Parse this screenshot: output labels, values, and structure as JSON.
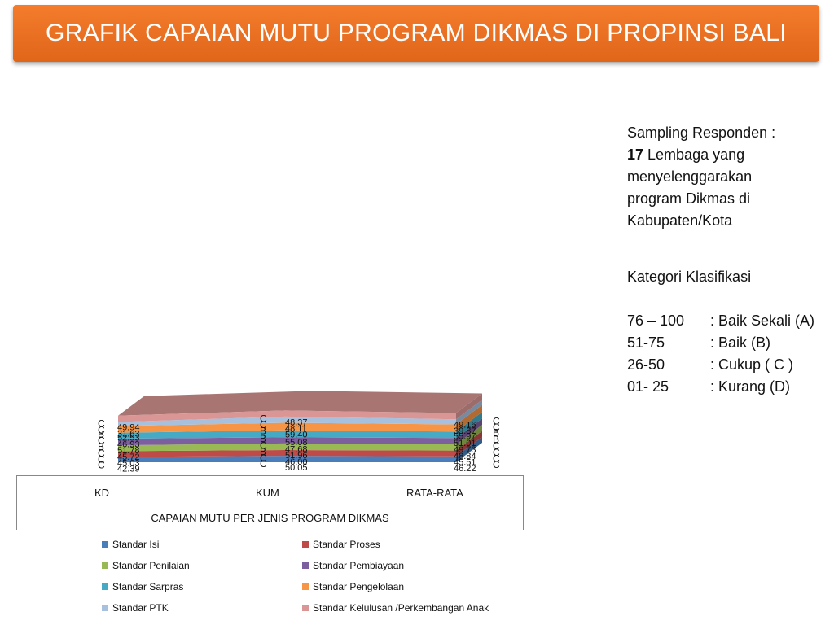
{
  "title": "GRAFIK CAPAIAN MUTU PROGRAM DIKMAS DI PROPINSI BALI",
  "side_panel": {
    "line1": "Sampling Responden   :",
    "count": "17",
    "line2_rest": " Lembaga yang",
    "line3": "menyelenggarakan",
    "line4": "program Dikmas di",
    "line5": "Kabupaten/Kota",
    "kategori_title": "Kategori Klasifikasi",
    "kategori": [
      {
        "range": "76 – 100",
        "label": ": Baik Sekali (A)"
      },
      {
        "range": "51-75",
        "label": ": Baik (B)"
      },
      {
        "range": "26-50",
        "label": ": Cukup ( C )"
      },
      {
        "range": "01- 25",
        "label": ": Kurang (D)"
      }
    ]
  },
  "chart_data": {
    "type": "area",
    "stacked": true,
    "three_d": true,
    "categories": [
      "KD",
      "KUM",
      "RATA-RATA"
    ],
    "xlabel": "CAPAIAN MUTU PER JENIS PROGRAM DIKMAS",
    "legend_position": "bottom",
    "series": [
      {
        "name": "Standar Isi",
        "color": "#4a7ebb",
        "values": [
          42.39,
          50.05,
          46.22
        ],
        "grades": [
          "C",
          "C",
          "C"
        ]
      },
      {
        "name": "Standar Proses",
        "color": "#be4b48",
        "values": [
          45.03,
          46.0,
          45.51
        ],
        "grades": [
          "C",
          "C",
          "C"
        ]
      },
      {
        "name": "Standar Penilaian",
        "color": "#98b954",
        "values": [
          45.72,
          51.96,
          48.84
        ],
        "grades": [
          "C",
          "B",
          "C"
        ]
      },
      {
        "name": "Standar Pembiayaan",
        "color": "#7d5fa0",
        "values": [
          51.78,
          47.68,
          49.73
        ],
        "grades": [
          "B",
          "C",
          "C"
        ]
      },
      {
        "name": "Standar Sarpras",
        "color": "#46aac5",
        "values": [
          46.93,
          55.08,
          51.01
        ],
        "grades": [
          "C",
          "B",
          "B"
        ]
      },
      {
        "name": "Standar Pengelolaan",
        "color": "#f69546",
        "values": [
          52.53,
          59.4,
          55.97
        ],
        "grades": [
          "B",
          "B",
          "B"
        ]
      },
      {
        "name": "Standar PTK",
        "color": "#a7c0de",
        "values": [
          31.63,
          48.11,
          39.87
        ],
        "grades": [
          "C",
          "C",
          "C"
        ]
      },
      {
        "name": "Standar Kelulusan /Perkembangan Anak",
        "color": "#d99694",
        "values": [
          49.94,
          48.37,
          49.16
        ],
        "grades": [
          "C",
          "C",
          "C"
        ]
      }
    ],
    "value_labels": [
      [
        "42.39",
        "50.05",
        "46.22"
      ],
      [
        "45.03",
        "46.00",
        "45.51"
      ],
      [
        "45.72",
        "51.96",
        "48.84"
      ],
      [
        "51.78",
        "47.68",
        "49.73"
      ],
      [
        "46.93",
        "55.08",
        "51.01"
      ],
      [
        "52.53",
        "59.40",
        "55.97"
      ],
      [
        "31.63",
        "48.11",
        "39.87"
      ],
      [
        "49.94",
        "48.37",
        "49.16"
      ]
    ]
  }
}
